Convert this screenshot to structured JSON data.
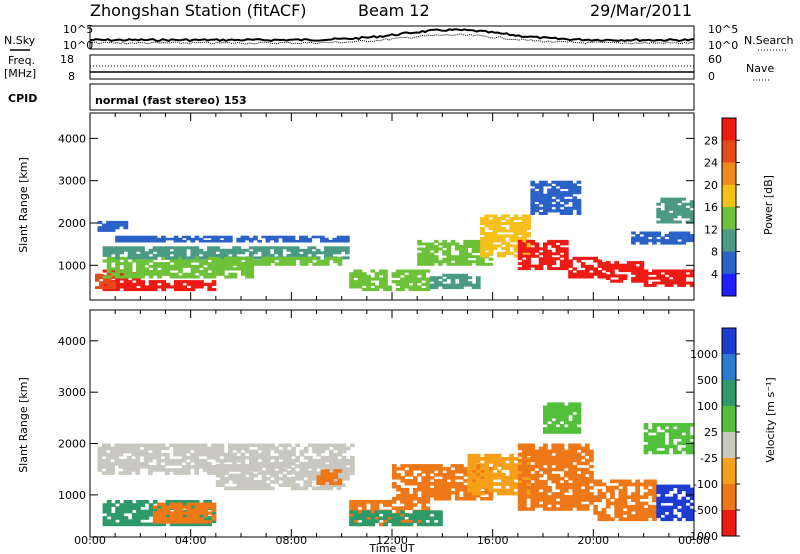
{
  "header": {
    "station": "Zhongshan Station (fitACF)",
    "beam": "Beam 12",
    "date": "29/Mar/2011"
  },
  "labels": {
    "nsky": "N.Sky",
    "nsearch": "N.Search",
    "freq": "Freq.",
    "mhz": "[MHz]",
    "nave": "Nave",
    "cpid": "CPID",
    "cpid_value": "normal (fast stereo) 153",
    "xlabel": "Time UT",
    "ylabel_top": "Slant Range [km]",
    "ylabel_bottom": "Slant Range [km]",
    "power_label": "Power [dB]",
    "velocity_label": "Velocity [m s⁻¹]"
  },
  "noise_panel": {
    "left_ticks": [
      "10^5",
      "10^0"
    ],
    "right_ticks": [
      "10^5",
      "10^0"
    ]
  },
  "freq_panel": {
    "left_ticks": [
      "18",
      "8"
    ],
    "right_ticks": [
      "60",
      "0"
    ]
  },
  "chart_data": [
    {
      "type": "heatmap",
      "name": "power",
      "x_ticks": [
        "00:00",
        "04:00",
        "08:00",
        "12:00",
        "16:00",
        "20:00",
        "00:00"
      ],
      "y_ticks": [
        "1000",
        "2000",
        "3000",
        "4000"
      ],
      "xlabel": "Time UT",
      "ylabel": "Slant Range [km]",
      "ylim": [
        180,
        4600
      ],
      "colorbar": {
        "label": "Power [dB]",
        "ticks": [
          "4",
          "8",
          "12",
          "16",
          "20",
          "24",
          "28"
        ],
        "colors": [
          "#1e1eff",
          "#2a62c8",
          "#4a9a84",
          "#6ec23a",
          "#f6c01a",
          "#f08a1a",
          "#e64a18",
          "#ee1a14"
        ]
      },
      "cells": [
        [
          0.5,
          2.0,
          400,
          900,
          7
        ],
        [
          0.2,
          1.0,
          450,
          800,
          6
        ],
        [
          2.0,
          5.0,
          400,
          650,
          7
        ],
        [
          0.5,
          6.5,
          700,
          1200,
          3
        ],
        [
          0.5,
          10.3,
          1150,
          1450,
          2
        ],
        [
          1.0,
          10.3,
          1550,
          1700,
          1
        ],
        [
          0.3,
          1.5,
          1800,
          2050,
          1
        ],
        [
          4.5,
          10.0,
          1000,
          1200,
          3
        ],
        [
          10.3,
          13.5,
          400,
          900,
          3
        ],
        [
          13.5,
          15.5,
          450,
          800,
          2
        ],
        [
          13.0,
          16.0,
          1000,
          1600,
          3
        ],
        [
          15.5,
          17.5,
          1200,
          2200,
          4
        ],
        [
          17.0,
          19.0,
          900,
          1600,
          7
        ],
        [
          19.0,
          20.5,
          700,
          1200,
          7
        ],
        [
          20.5,
          22.0,
          600,
          1100,
          7
        ],
        [
          22.0,
          24.0,
          500,
          900,
          7
        ],
        [
          21.5,
          24.0,
          1500,
          1800,
          1
        ],
        [
          17.5,
          19.5,
          2200,
          3000,
          1
        ],
        [
          22.5,
          24.0,
          2000,
          2600,
          2
        ]
      ]
    },
    {
      "type": "heatmap",
      "name": "velocity",
      "x_ticks": [
        "00:00",
        "04:00",
        "08:00",
        "12:00",
        "16:00",
        "20:00",
        "00:00"
      ],
      "y_ticks": [
        "1000",
        "2000",
        "3000",
        "4000"
      ],
      "xlabel": "Time UT",
      "ylabel": "Slant Range [km]",
      "ylim": [
        180,
        4600
      ],
      "colorbar": {
        "label": "Velocity [m s⁻¹]",
        "ticks": [
          "1000",
          "500",
          "100",
          "25",
          "-25",
          "-100",
          "-500",
          "-1000"
        ],
        "colors": [
          "#1e3cd2",
          "#2a7ad2",
          "#2e9a6a",
          "#52c03a",
          "#c8c8c0",
          "#f6a01a",
          "#ee7818",
          "#ee1a14"
        ]
      },
      "cells": [
        [
          0.3,
          10.5,
          1400,
          2000,
          4
        ],
        [
          0.5,
          5.0,
          400,
          900,
          2
        ],
        [
          2.5,
          5.0,
          450,
          850,
          6
        ],
        [
          5.0,
          10.3,
          1100,
          1600,
          4
        ],
        [
          10.3,
          13.5,
          400,
          900,
          6
        ],
        [
          10.3,
          14.0,
          400,
          700,
          2
        ],
        [
          12.0,
          16.0,
          900,
          1600,
          6
        ],
        [
          15.0,
          17.5,
          1000,
          1800,
          5
        ],
        [
          17.0,
          20.0,
          700,
          2000,
          6
        ],
        [
          20.0,
          22.5,
          500,
          1300,
          6
        ],
        [
          22.5,
          24.0,
          500,
          1200,
          0
        ],
        [
          18.0,
          19.5,
          2200,
          2800,
          3
        ],
        [
          22.0,
          24.0,
          1800,
          2400,
          3
        ],
        [
          9.0,
          10.0,
          1200,
          1500,
          6
        ]
      ]
    }
  ]
}
